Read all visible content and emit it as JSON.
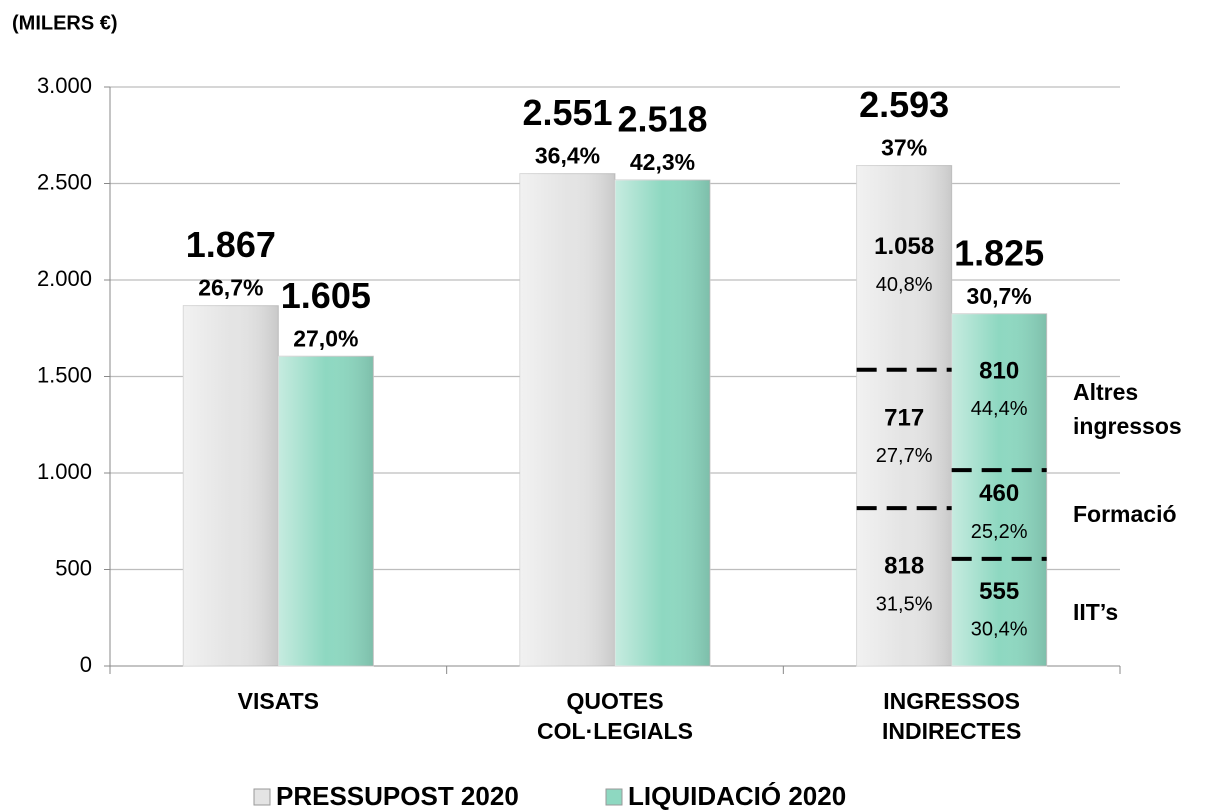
{
  "chart_data": {
    "type": "bar",
    "unit_label": "(MILERS €)",
    "categories": [
      "VISATS",
      "QUOTES COL·LEGIALS",
      "INGRESSOS INDIRECTES"
    ],
    "series": [
      {
        "name": "PRESSUPOST 2020",
        "color": "#e4e4e4",
        "values": [
          1867,
          2551,
          2593
        ],
        "value_labels": [
          "1.867",
          "2.551",
          "2.593"
        ],
        "share_labels": [
          "26,7%",
          "36,4%",
          "37%"
        ]
      },
      {
        "name": "LIQUIDACIÓ 2020",
        "color": "#8ed8c1",
        "values": [
          1605,
          2518,
          1825
        ],
        "value_labels": [
          "1.605",
          "2.518",
          "1.825"
        ],
        "share_labels": [
          "27,0%",
          "42,3%",
          "30,7%"
        ]
      }
    ],
    "breakdown": {
      "segment_names": [
        "IIT’s",
        "Formació",
        "Altres ingressos"
      ],
      "series": [
        {
          "values": [
            818,
            717,
            1058
          ],
          "value_labels": [
            "818",
            "717",
            "1.058"
          ],
          "share_labels": [
            "31,5%",
            "27,7%",
            "40,8%"
          ]
        },
        {
          "values": [
            555,
            460,
            810
          ],
          "value_labels": [
            "555",
            "460",
            "810"
          ],
          "share_labels": [
            "30,4%",
            "25,2%",
            "44,4%"
          ]
        }
      ]
    },
    "ylim": [
      0,
      3000
    ],
    "yticks": [
      0,
      500,
      {
        "value": 1000,
        "label": "1.000"
      },
      {
        "value": 1500,
        "label": "1.500"
      },
      {
        "value": 2000,
        "label": "2.000"
      },
      {
        "value": 2500,
        "label": "2.500"
      },
      {
        "value": 3000,
        "label": "3.000"
      }
    ],
    "grid": true
  }
}
